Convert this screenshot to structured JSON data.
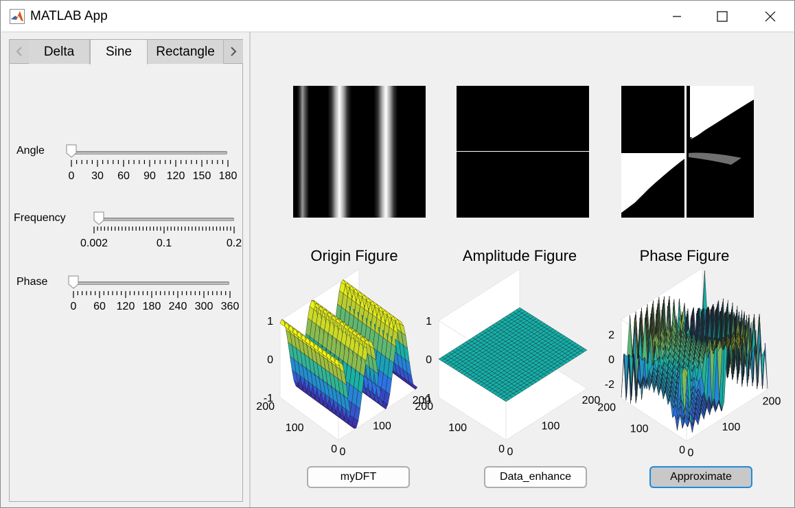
{
  "window": {
    "title": "MATLAB App",
    "minimize_icon": "minimize-icon",
    "maximize_icon": "maximize-icon",
    "close_icon": "close-icon"
  },
  "tabs": {
    "items": [
      {
        "label": "Delta",
        "active": false
      },
      {
        "label": "Sine",
        "active": true
      },
      {
        "label": "Rectangle",
        "active": false
      }
    ]
  },
  "controls": {
    "angle": {
      "label": "Angle",
      "value": 0,
      "min": 0,
      "max": 180,
      "tick_labels": [
        "0",
        "30",
        "60",
        "90",
        "120",
        "150",
        "180"
      ]
    },
    "frequency": {
      "label": "Frequency",
      "value": 0.002,
      "min": 0.002,
      "max": 0.2,
      "tick_labels": [
        "0.002",
        "0.1",
        "0.2"
      ]
    },
    "phase": {
      "label": "Phase",
      "value": 0,
      "min": 0,
      "max": 360,
      "tick_labels": [
        "0",
        "60",
        "120",
        "180",
        "240",
        "300",
        "360"
      ]
    }
  },
  "figures": {
    "origin_title": "Origin Figure",
    "amplitude_title": "Amplitude Figure",
    "phase_title": "Phase Figure"
  },
  "surfaces": {
    "origin": {
      "z_ticks": [
        "1",
        "0",
        "-1"
      ],
      "y_ticks": [
        "200",
        "100",
        "0"
      ],
      "x_ticks": [
        "0",
        "100",
        "200"
      ]
    },
    "amplitude": {
      "z_ticks": [
        "1",
        "0",
        "-1"
      ],
      "y_ticks": [
        "200",
        "100",
        "0"
      ],
      "x_ticks": [
        "0",
        "100",
        "200"
      ]
    },
    "phase": {
      "z_ticks": [
        "2",
        "0",
        "-2"
      ],
      "y_ticks": [
        "200",
        "100",
        "0"
      ],
      "x_ticks": [
        "0",
        "100",
        "200"
      ]
    }
  },
  "buttons": {
    "mydft": "myDFT",
    "data_enhance": "Data_enhance",
    "approximate": "Approximate"
  },
  "colors": {
    "accent_focus": "#1f8ad9",
    "surface_low": "#3e2a8c",
    "surface_mid": "#1fa1a1",
    "surface_high": "#f2e83a"
  }
}
